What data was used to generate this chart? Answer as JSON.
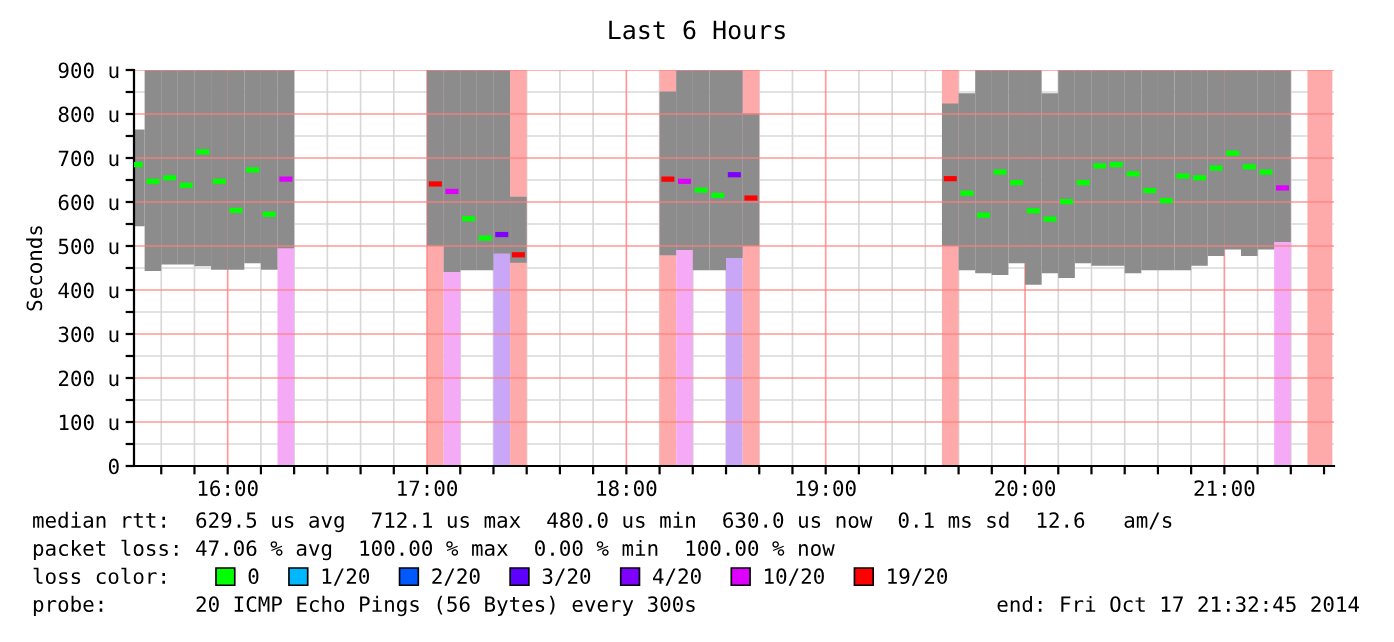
{
  "chart_data": {
    "type": "bar",
    "title": "Last 6 Hours",
    "ylabel": "Seconds",
    "xlim": [
      15.53,
      21.55
    ],
    "ylim": [
      0,
      900
    ],
    "xticks": [
      {
        "value": 15.6667,
        "label": null
      },
      {
        "value": 15.8333,
        "label": null
      },
      {
        "value": 16,
        "label": "16:00"
      },
      {
        "value": 16.1667,
        "label": null
      },
      {
        "value": 16.3333,
        "label": null
      },
      {
        "value": 16.5,
        "label": null
      },
      {
        "value": 16.6667,
        "label": null
      },
      {
        "value": 16.8333,
        "label": null
      },
      {
        "value": 17,
        "label": "17:00"
      },
      {
        "value": 17.1667,
        "label": null
      },
      {
        "value": 17.3333,
        "label": null
      },
      {
        "value": 17.5,
        "label": null
      },
      {
        "value": 17.6667,
        "label": null
      },
      {
        "value": 17.8333,
        "label": null
      },
      {
        "value": 18,
        "label": "18:00"
      },
      {
        "value": 18.1667,
        "label": null
      },
      {
        "value": 18.3333,
        "label": null
      },
      {
        "value": 18.5,
        "label": null
      },
      {
        "value": 18.6667,
        "label": null
      },
      {
        "value": 18.8333,
        "label": null
      },
      {
        "value": 19,
        "label": "19:00"
      },
      {
        "value": 19.1667,
        "label": null
      },
      {
        "value": 19.3333,
        "label": null
      },
      {
        "value": 19.5,
        "label": null
      },
      {
        "value": 19.6667,
        "label": null
      },
      {
        "value": 19.8333,
        "label": null
      },
      {
        "value": 20,
        "label": "20:00"
      },
      {
        "value": 20.1667,
        "label": null
      },
      {
        "value": 20.3333,
        "label": null
      },
      {
        "value": 20.5,
        "label": null
      },
      {
        "value": 20.6667,
        "label": null
      },
      {
        "value": 20.8333,
        "label": null
      },
      {
        "value": 21,
        "label": "21:00"
      },
      {
        "value": 21.1667,
        "label": null
      },
      {
        "value": 21.3333,
        "label": null
      },
      {
        "value": 21.5,
        "label": null
      }
    ],
    "yticks": [
      {
        "value": 0,
        "label": "0"
      },
      {
        "value": 50,
        "label": null
      },
      {
        "value": 100,
        "label": "100 u"
      },
      {
        "value": 150,
        "label": null
      },
      {
        "value": 200,
        "label": "200 u"
      },
      {
        "value": 250,
        "label": null
      },
      {
        "value": 300,
        "label": "300 u"
      },
      {
        "value": 350,
        "label": null
      },
      {
        "value": 400,
        "label": "400 u"
      },
      {
        "value": 450,
        "label": null
      },
      {
        "value": 500,
        "label": "500 u"
      },
      {
        "value": 550,
        "label": null
      },
      {
        "value": 600,
        "label": "600 u"
      },
      {
        "value": 650,
        "label": null
      },
      {
        "value": 700,
        "label": "700 u"
      },
      {
        "value": 750,
        "label": null
      },
      {
        "value": 800,
        "label": "800 u"
      },
      {
        "value": 850,
        "label": null
      },
      {
        "value": 900,
        "label": "900 u"
      }
    ],
    "grid": true,
    "legend": "bottom",
    "legend_title": "loss color:",
    "bands": [
      {
        "axis": "x",
        "from": 16.25,
        "to": 16.3333,
        "color": "#f4aaf4"
      },
      {
        "axis": "x",
        "from": 17.0,
        "to": 17.0833,
        "color": "#ffaaaa"
      },
      {
        "axis": "x",
        "from": 17.0833,
        "to": 17.1667,
        "color": "#f4aaf4"
      },
      {
        "axis": "x",
        "from": 17.3333,
        "to": 17.4167,
        "color": "#caa6f6"
      },
      {
        "axis": "x",
        "from": 17.4167,
        "to": 17.5,
        "color": "#ffaaaa"
      },
      {
        "axis": "x",
        "from": 18.1667,
        "to": 18.25,
        "color": "#ffaaaa"
      },
      {
        "axis": "x",
        "from": 18.25,
        "to": 18.3333,
        "color": "#f4aaf4"
      },
      {
        "axis": "x",
        "from": 18.5,
        "to": 18.5833,
        "color": "#caa6f6"
      },
      {
        "axis": "x",
        "from": 18.5833,
        "to": 18.6667,
        "color": "#ffaaaa"
      },
      {
        "axis": "x",
        "from": 19.5833,
        "to": 19.6667,
        "color": "#ffaaaa"
      },
      {
        "axis": "x",
        "from": 21.25,
        "to": 21.3333,
        "color": "#f4aaf4"
      },
      {
        "axis": "x",
        "from": 21.4167,
        "to": 21.5417,
        "color": "#ffaaaa"
      }
    ],
    "series": [
      {
        "color": "#8c8c8c",
        "x": [
          15.5417,
          15.625,
          15.7083,
          15.7917,
          15.875,
          15.9583,
          16.0417,
          16.125,
          16.2083,
          16.2917,
          17.0417,
          17.125,
          17.2083,
          17.2917,
          17.375,
          17.4583,
          18.2083,
          18.2917,
          18.375,
          18.4583,
          18.5417,
          18.625,
          19.625,
          19.7083,
          19.7917,
          19.875,
          19.9583,
          20.0417,
          20.125,
          20.2083,
          20.2917,
          20.375,
          20.4583,
          20.5417,
          20.625,
          20.7083,
          20.7917,
          20.875,
          20.9583,
          21.0417,
          21.125,
          21.2083,
          21.2917
        ],
        "base": [
          545,
          443,
          458,
          458,
          454,
          446,
          446,
          461,
          446,
          495,
          500,
          441,
          445,
          445,
          483,
          462,
          479,
          491,
          445,
          445,
          473,
          500,
          500,
          445,
          438,
          434,
          461,
          412,
          438,
          427,
          461,
          455,
          455,
          438,
          445,
          445,
          445,
          455,
          477,
          492,
          477,
          492,
          509
        ],
        "values": [
          220,
          457,
          442,
          442,
          446,
          454,
          454,
          439,
          454,
          405,
          400,
          459,
          455,
          455,
          417,
          150,
          372,
          409,
          455,
          455,
          427,
          301,
          324,
          402,
          462,
          466,
          439,
          488,
          409,
          473,
          439,
          445,
          445,
          462,
          455,
          455,
          455,
          445,
          423,
          408,
          423,
          408,
          391
        ]
      },
      {
        "type": "scatter",
        "name": "0",
        "color": "#00ff00",
        "x": [
          15.5417,
          15.625,
          15.7083,
          15.7917,
          15.875,
          15.9583,
          16.0417,
          16.125,
          16.2083,
          17.2083,
          17.2917,
          18.375,
          18.4583,
          19.7083,
          19.7917,
          19.875,
          19.9583,
          20.0417,
          20.125,
          20.2083,
          20.2917,
          20.375,
          20.4583,
          20.5417,
          20.625,
          20.7083,
          20.7917,
          20.875,
          20.9583,
          21.0417,
          21.125,
          21.2083
        ],
        "values": [
          685,
          647,
          655,
          638,
          714,
          647,
          581,
          673,
          572,
          562,
          518,
          627,
          615,
          620,
          570,
          668,
          644,
          580,
          561,
          601,
          644,
          682,
          685,
          664,
          626,
          603,
          659,
          655,
          677,
          711,
          680,
          668
        ]
      },
      {
        "type": "scatter",
        "name": "1/20",
        "color": "#00b8ff"
      },
      {
        "type": "scatter",
        "name": "2/20",
        "color": "#0059ff"
      },
      {
        "type": "scatter",
        "name": "3/20",
        "color": "#5e00ff"
      },
      {
        "type": "scatter",
        "name": "4/20",
        "color": "#7e00ff",
        "x": [
          17.375,
          18.5417
        ],
        "values": [
          526,
          662
        ]
      },
      {
        "type": "scatter",
        "name": "10/20",
        "color": "#dd00ff",
        "x": [
          16.2917,
          17.125,
          18.2917,
          21.2917
        ],
        "values": [
          652,
          624,
          647,
          632
        ]
      },
      {
        "type": "scatter",
        "name": "19/20",
        "color": "#ff0000",
        "x": [
          17.0417,
          17.4583,
          18.2083,
          18.625,
          19.625
        ],
        "values": [
          641,
          480,
          652,
          609,
          653
        ]
      }
    ],
    "annotations": [
      "median rtt:  629.5 us avg  712.1 us max  480.0 us min  630.0 us now  0.1 ms sd  12.6   am/s",
      "packet loss: 47.06 % avg  100.00 % max  0.00 % min  100.00 % now",
      "probe:       20 ICMP Echo Pings (56 Bytes) every 300s",
      "end: Fri Oct 17 21:32:45 2014"
    ]
  }
}
